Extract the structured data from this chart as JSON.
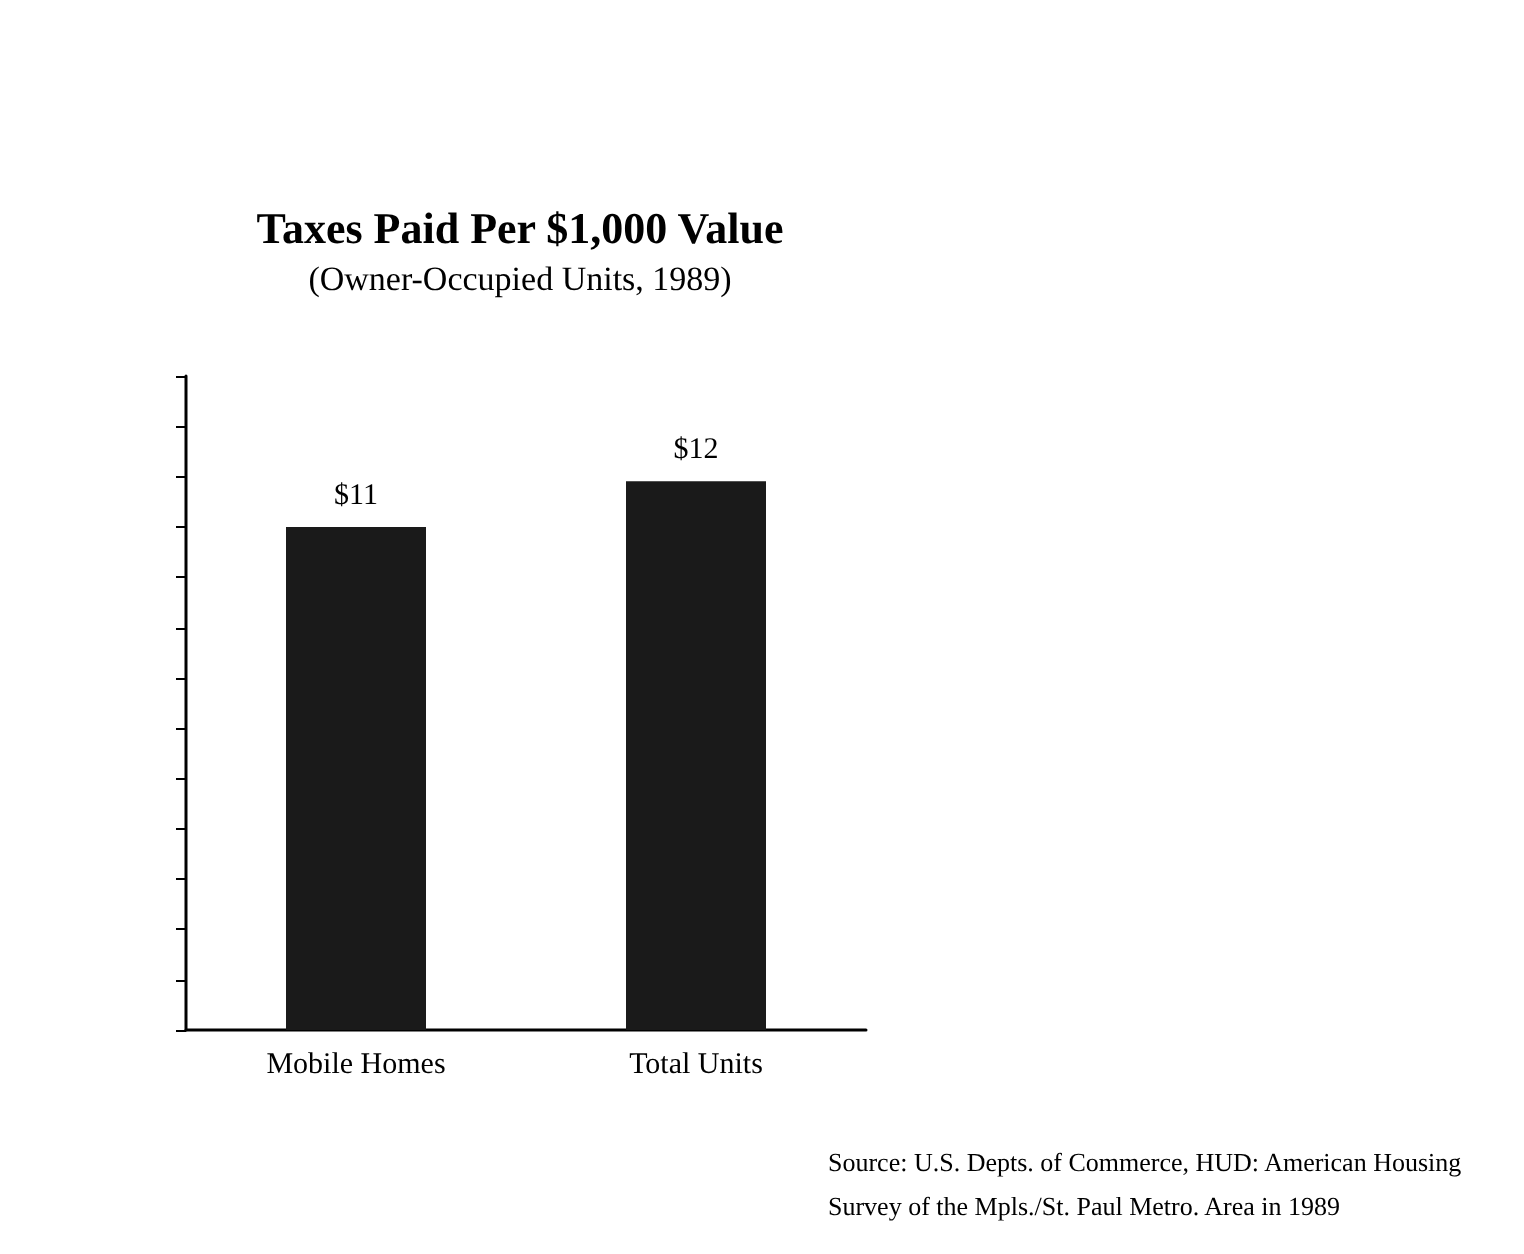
{
  "chart_data": {
    "type": "bar",
    "title": "Taxes Paid Per $1,000 Value",
    "subtitle": "(Owner-Occupied Units, 1989)",
    "categories": [
      "Mobile Homes",
      "Total Units"
    ],
    "values": [
      11,
      12
    ],
    "color": "#1a1a1a",
    "value_labels": [
      "$11",
      "$12"
    ],
    "ylim": [
      0,
      14.3
    ],
    "yticks": [
      {
        "value": 0,
        "label": null
      },
      {
        "value": 1.1,
        "label": null
      },
      {
        "value": 2.2,
        "label": null
      },
      {
        "value": 3.3,
        "label": null
      },
      {
        "value": 4.4,
        "label": null
      },
      {
        "value": 5.5,
        "label": null
      },
      {
        "value": 6.6,
        "label": null
      },
      {
        "value": 7.7,
        "label": null
      },
      {
        "value": 8.8,
        "label": null
      },
      {
        "value": 9.9,
        "label": null
      },
      {
        "value": 11,
        "label": null
      },
      {
        "value": 12.1,
        "label": null
      },
      {
        "value": 13.2,
        "label": null
      },
      {
        "value": 14.3,
        "label": null
      }
    ],
    "tick_labels": "x",
    "annotations": [
      "Source: U.S. Depts. of Commerce, HUD: American Housing Survey of the Mpls./St. Paul Metro. Area in 1989"
    ]
  }
}
